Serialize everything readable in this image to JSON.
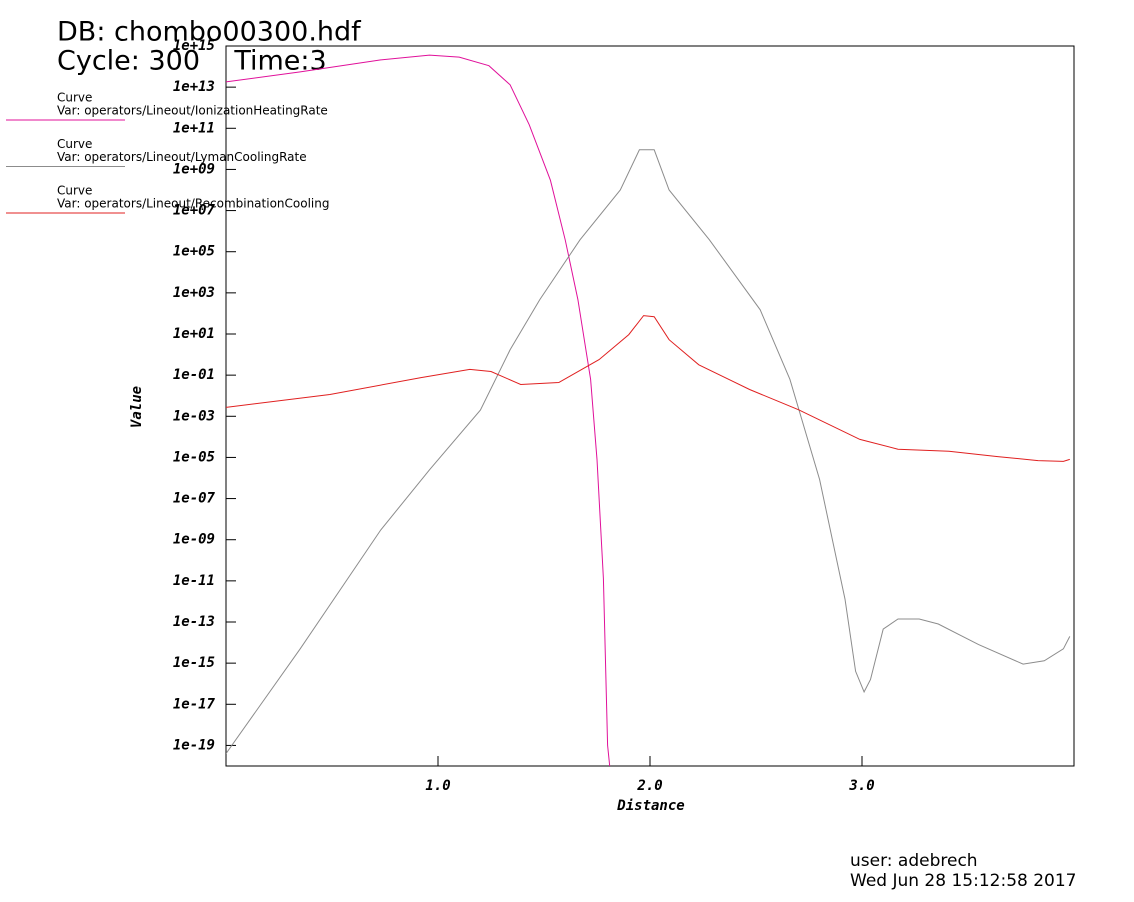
{
  "chart_data": {
    "type": "line",
    "title": "DB: chombo00300.hdf",
    "subtitle": "Cycle: 300    Time:3",
    "x_label": "Distance",
    "y_label": "Value",
    "user": "user: adebrech",
    "date": "Wed Jun 28 15:12:58 2017",
    "legend_heading": "Curve",
    "yscale": "log",
    "xlim": [
      0,
      4
    ],
    "ylim": [
      1e-20,
      1000000000000000.0
    ],
    "xticks": [
      {
        "value": 1,
        "label": "1.0"
      },
      {
        "value": 2,
        "label": "2.0"
      },
      {
        "value": 3,
        "label": "3.0"
      }
    ],
    "yticks": [
      {
        "value": 1000000000000000.0,
        "label": "1e+15"
      },
      {
        "value": 10000000000000.0,
        "label": "1e+13"
      },
      {
        "value": 100000000000.0,
        "label": "1e+11"
      },
      {
        "value": 1000000000.0,
        "label": "1e+09"
      },
      {
        "value": 10000000.0,
        "label": "1e+07"
      },
      {
        "value": 100000.0,
        "label": "1e+05"
      },
      {
        "value": 1000.0,
        "label": "1e+03"
      },
      {
        "value": 10,
        "label": "1e+01"
      },
      {
        "value": 0.1,
        "label": "1e-01"
      },
      {
        "value": 0.001,
        "label": "1e-03"
      },
      {
        "value": 1e-05,
        "label": "1e-05"
      },
      {
        "value": 1e-07,
        "label": "1e-07"
      },
      {
        "value": 1e-09,
        "label": "1e-09"
      },
      {
        "value": 1e-11,
        "label": "1e-11"
      },
      {
        "value": 1e-13,
        "label": "1e-13"
      },
      {
        "value": 1e-15,
        "label": "1e-15"
      },
      {
        "value": 1e-17,
        "label": "1e-17"
      },
      {
        "value": 1e-19,
        "label": "1e-19"
      }
    ],
    "series": [
      {
        "name": "Var: operators/Lineout/IonizationHeatingRate",
        "color": "#e0109a",
        "x": [
          0,
          0.35,
          0.73,
          0.96,
          1.1,
          1.24,
          1.34,
          1.43,
          1.53,
          1.6,
          1.66,
          1.72,
          1.75,
          1.78,
          1.8,
          1.81
        ],
        "values": [
          18000000000000.0,
          55000000000000.0,
          210000000000000.0,
          360000000000000.0,
          290000000000000.0,
          110000000000000.0,
          13000000000000.0,
          150000000000.0,
          300000000.0,
          380000.0,
          470,
          0.063,
          8e-06,
          1.3e-11,
          1e-19,
          1e-20
        ]
      },
      {
        "name": "Var: operators/Lineout/LymanCoolingRate",
        "color": "#8c8c8c",
        "x": [
          0,
          0.35,
          0.73,
          0.96,
          1.2,
          1.34,
          1.48,
          1.67,
          1.86,
          1.95,
          2.02,
          2.09,
          2.28,
          2.52,
          2.66,
          2.8,
          2.92,
          2.97,
          3.01,
          3.04,
          3.1,
          3.17,
          3.27,
          3.36,
          3.55,
          3.76,
          3.86,
          3.95,
          3.98
        ],
        "values": [
          4e-20,
          5e-15,
          3e-09,
          2.5e-06,
          0.002,
          1.7,
          470,
          380000.0,
          100000000.0,
          9000000000.0,
          9000000000.0,
          100000000.0,
          380000.0,
          150,
          0.063,
          8.5e-07,
          1.3e-12,
          4e-16,
          4e-17,
          1.6e-16,
          4.5e-14,
          1.4e-13,
          1.4e-13,
          8e-14,
          8e-15,
          9e-16,
          1.3e-15,
          5e-15,
          2e-14
        ]
      },
      {
        "name": "Var: operators/Lineout/RecombinationCooling",
        "color": "#e02020",
        "x": [
          0,
          0.49,
          0.92,
          1.15,
          1.25,
          1.39,
          1.57,
          1.76,
          1.9,
          1.97,
          2.02,
          2.09,
          2.23,
          2.47,
          2.7,
          2.99,
          3.17,
          3.41,
          3.64,
          3.83,
          3.95,
          3.98
        ],
        "values": [
          0.0027,
          0.0115,
          0.076,
          0.19,
          0.15,
          0.035,
          0.044,
          0.57,
          9.3,
          78,
          69,
          5.3,
          0.32,
          0.02,
          0.0021,
          7.5e-05,
          2.5e-05,
          2e-05,
          1.1e-05,
          7e-06,
          6.4e-06,
          8e-06
        ]
      }
    ]
  }
}
